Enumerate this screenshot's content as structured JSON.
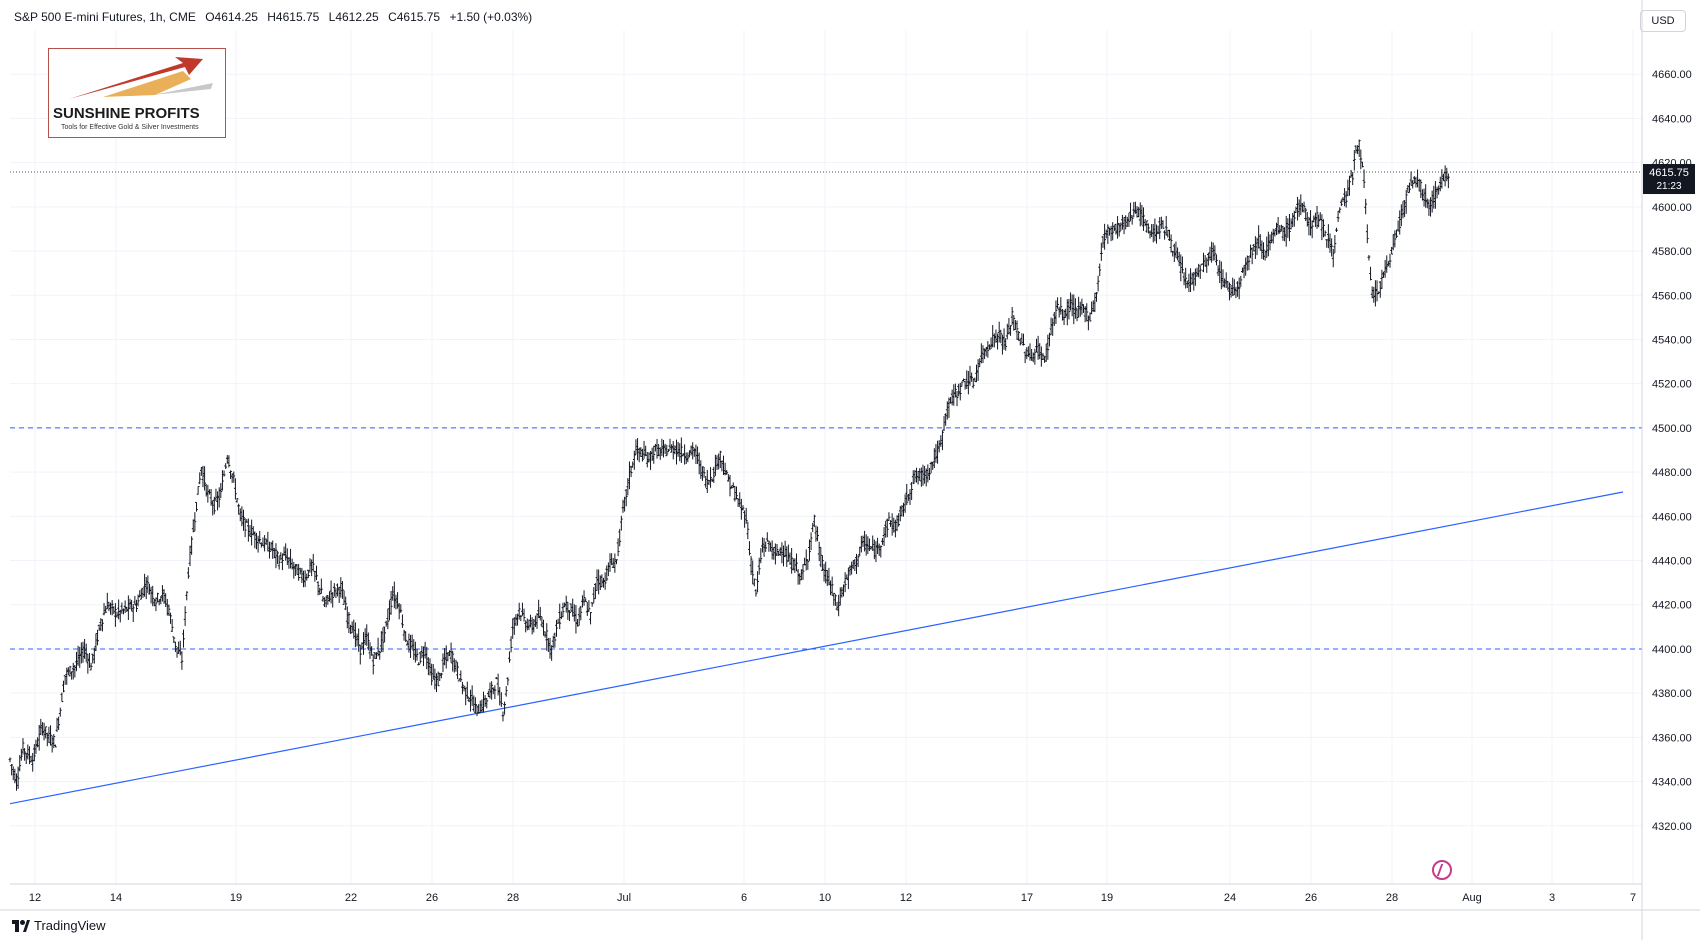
{
  "header": {
    "symbol": "S&P 500 E-mini Futures, 1h, CME",
    "open": "O4614.25",
    "high": "H4615.75",
    "low": "L4612.25",
    "close": "C4615.75",
    "change": "+1.50 (+0.03%)"
  },
  "currency": "USD",
  "branding": "TradingView",
  "logo": {
    "title": "SUNSHINE PROFITS",
    "subtitle": "Tools for Effective Gold & Silver Investments"
  },
  "colors": {
    "candle": "#131722",
    "trendline": "#2962ff",
    "level": "#2962ff",
    "current_tag": "#131722",
    "grid": "#f0f3fa"
  },
  "chart_data": {
    "type": "line",
    "style": "hourly OHLC bars",
    "symbol": "S&P 500 E-mini Futures",
    "interval": "1h",
    "ylim": [
      4300,
      4680
    ],
    "y_ticks": [
      4320,
      4340,
      4360,
      4380,
      4400,
      4420,
      4440,
      4460,
      4480,
      4500,
      4520,
      4540,
      4560,
      4580,
      4600,
      4620,
      4640,
      4660
    ],
    "x_tick_labels": [
      "12",
      "14",
      "19",
      "22",
      "26",
      "28",
      "Jul",
      "6",
      "10",
      "12",
      "17",
      "19",
      "24",
      "26",
      "28",
      "Aug",
      "3",
      "7"
    ],
    "grid": true,
    "current_price": "4615.75",
    "countdown": "21:23",
    "horizontal_levels": [
      4500,
      4400
    ],
    "trendline": {
      "start": [
        "Jun 12",
        4330
      ],
      "end": [
        "Aug 7",
        4471
      ]
    },
    "series": [
      {
        "values_by_label": [
          [
            "12",
            4355
          ],
          [
            "14",
            4420
          ],
          [
            "19",
            4460
          ],
          [
            "22",
            4405
          ],
          [
            "26",
            4385
          ],
          [
            "28",
            4415
          ],
          [
            "Jul",
            4490
          ],
          [
            "6",
            4440
          ],
          [
            "10",
            4420
          ],
          [
            "12",
            4475
          ],
          [
            "17",
            4535
          ],
          [
            "19",
            4595
          ],
          [
            "24",
            4565
          ],
          [
            "26",
            4600
          ],
          [
            "28",
            4575
          ]
        ],
        "path": [
          [
            0,
            4350
          ],
          [
            4,
            4340
          ],
          [
            8,
            4355
          ],
          [
            14,
            4350
          ],
          [
            20,
            4365
          ],
          [
            24,
            4360
          ],
          [
            28,
            4358
          ],
          [
            34,
            4388
          ],
          [
            40,
            4392
          ],
          [
            46,
            4400
          ],
          [
            50,
            4392
          ],
          [
            56,
            4412
          ],
          [
            60,
            4420
          ],
          [
            66,
            4416
          ],
          [
            72,
            4418
          ],
          [
            78,
            4420
          ],
          [
            84,
            4430
          ],
          [
            90,
            4422
          ],
          [
            94,
            4425
          ],
          [
            98,
            4418
          ],
          [
            102,
            4402
          ],
          [
            106,
            4395
          ],
          [
            110,
            4435
          ],
          [
            114,
            4460
          ],
          [
            118,
            4482
          ],
          [
            122,
            4470
          ],
          [
            126,
            4465
          ],
          [
            130,
            4470
          ],
          [
            134,
            4488
          ],
          [
            138,
            4476
          ],
          [
            142,
            4460
          ],
          [
            146,
            4455
          ],
          [
            150,
            4452
          ],
          [
            156,
            4448
          ],
          [
            162,
            4445
          ],
          [
            166,
            4440
          ],
          [
            170,
            4442
          ],
          [
            176,
            4436
          ],
          [
            182,
            4432
          ],
          [
            186,
            4438
          ],
          [
            190,
            4430
          ],
          [
            194,
            4420
          ],
          [
            198,
            4425
          ],
          [
            204,
            4428
          ],
          [
            208,
            4415
          ],
          [
            212,
            4408
          ],
          [
            216,
            4400
          ],
          [
            220,
            4405
          ],
          [
            224,
            4395
          ],
          [
            228,
            4400
          ],
          [
            232,
            4410
          ],
          [
            236,
            4425
          ],
          [
            240,
            4420
          ],
          [
            244,
            4405
          ],
          [
            248,
            4400
          ],
          [
            252,
            4395
          ],
          [
            256,
            4400
          ],
          [
            260,
            4388
          ],
          [
            264,
            4385
          ],
          [
            268,
            4395
          ],
          [
            272,
            4398
          ],
          [
            276,
            4390
          ],
          [
            280,
            4382
          ],
          [
            284,
            4378
          ],
          [
            288,
            4372
          ],
          [
            292,
            4375
          ],
          [
            296,
            4380
          ],
          [
            300,
            4385
          ],
          [
            304,
            4372
          ],
          [
            306,
            4380
          ],
          [
            310,
            4410
          ],
          [
            314,
            4418
          ],
          [
            318,
            4412
          ],
          [
            322,
            4410
          ],
          [
            326,
            4415
          ],
          [
            330,
            4408
          ],
          [
            334,
            4400
          ],
          [
            338,
            4412
          ],
          [
            342,
            4420
          ],
          [
            346,
            4418
          ],
          [
            350,
            4412
          ],
          [
            354,
            4422
          ],
          [
            358,
            4415
          ],
          [
            362,
            4432
          ],
          [
            366,
            4430
          ],
          [
            370,
            4438
          ],
          [
            374,
            4440
          ],
          [
            378,
            4462
          ],
          [
            382,
            4478
          ],
          [
            386,
            4490
          ],
          [
            390,
            4488
          ],
          [
            394,
            4486
          ],
          [
            398,
            4490
          ],
          [
            402,
            4489
          ],
          [
            406,
            4490
          ],
          [
            410,
            4491
          ],
          [
            414,
            4489
          ],
          [
            418,
            4488
          ],
          [
            422,
            4490
          ],
          [
            426,
            4482
          ],
          [
            430,
            4475
          ],
          [
            434,
            4480
          ],
          [
            438,
            4488
          ],
          [
            442,
            4478
          ],
          [
            446,
            4472
          ],
          [
            450,
            4465
          ],
          [
            454,
            4460
          ],
          [
            456,
            4445
          ],
          [
            460,
            4425
          ],
          [
            464,
            4446
          ],
          [
            468,
            4448
          ],
          [
            472,
            4442
          ],
          [
            476,
            4446
          ],
          [
            480,
            4440
          ],
          [
            484,
            4438
          ],
          [
            488,
            4432
          ],
          [
            492,
            4442
          ],
          [
            496,
            4458
          ],
          [
            500,
            4440
          ],
          [
            504,
            4432
          ],
          [
            508,
            4425
          ],
          [
            510,
            4418
          ],
          [
            514,
            4428
          ],
          [
            518,
            4435
          ],
          [
            522,
            4440
          ],
          [
            526,
            4448
          ],
          [
            530,
            4446
          ],
          [
            534,
            4444
          ],
          [
            538,
            4450
          ],
          [
            542,
            4458
          ],
          [
            546,
            4455
          ],
          [
            550,
            4462
          ],
          [
            554,
            4470
          ],
          [
            558,
            4478
          ],
          [
            562,
            4478
          ],
          [
            566,
            4480
          ],
          [
            570,
            4486
          ],
          [
            574,
            4492
          ],
          [
            578,
            4510
          ],
          [
            582,
            4514
          ],
          [
            586,
            4518
          ],
          [
            590,
            4522
          ],
          [
            594,
            4520
          ],
          [
            598,
            4530
          ],
          [
            602,
            4536
          ],
          [
            606,
            4540
          ],
          [
            610,
            4542
          ],
          [
            614,
            4538
          ],
          [
            618,
            4550
          ],
          [
            622,
            4542
          ],
          [
            626,
            4535
          ],
          [
            630,
            4532
          ],
          [
            634,
            4536
          ],
          [
            638,
            4530
          ],
          [
            642,
            4545
          ],
          [
            646,
            4555
          ],
          [
            650,
            4550
          ],
          [
            654,
            4556
          ],
          [
            658,
            4552
          ],
          [
            662,
            4554
          ],
          [
            666,
            4550
          ],
          [
            670,
            4560
          ],
          [
            674,
            4585
          ],
          [
            678,
            4590
          ],
          [
            682,
            4590
          ],
          [
            686,
            4592
          ],
          [
            690,
            4594
          ],
          [
            694,
            4600
          ],
          [
            698,
            4595
          ],
          [
            702,
            4590
          ],
          [
            706,
            4588
          ],
          [
            710,
            4592
          ],
          [
            714,
            4588
          ],
          [
            718,
            4580
          ],
          [
            722,
            4572
          ],
          [
            726,
            4565
          ],
          [
            730,
            4568
          ],
          [
            734,
            4572
          ],
          [
            738,
            4575
          ],
          [
            742,
            4580
          ],
          [
            746,
            4570
          ],
          [
            750,
            4565
          ],
          [
            754,
            4562
          ],
          [
            758,
            4565
          ],
          [
            762,
            4575
          ],
          [
            766,
            4580
          ],
          [
            770,
            4585
          ],
          [
            774,
            4580
          ],
          [
            778,
            4585
          ],
          [
            782,
            4590
          ],
          [
            786,
            4588
          ],
          [
            790,
            4592
          ],
          [
            794,
            4600
          ],
          [
            798,
            4598
          ],
          [
            802,
            4592
          ],
          [
            806,
            4595
          ],
          [
            810,
            4590
          ],
          [
            814,
            4585
          ],
          [
            816,
            4578
          ],
          [
            820,
            4600
          ],
          [
            824,
            4605
          ],
          [
            828,
            4615
          ],
          [
            830,
            4625
          ],
          [
            832,
            4628
          ],
          [
            834,
            4620
          ],
          [
            836,
            4600
          ],
          [
            838,
            4575
          ],
          [
            840,
            4560
          ],
          [
            844,
            4562
          ],
          [
            848,
            4570
          ],
          [
            852,
            4580
          ],
          [
            856,
            4590
          ],
          [
            860,
            4602
          ],
          [
            864,
            4610
          ],
          [
            868,
            4612
          ],
          [
            872,
            4605
          ],
          [
            876,
            4600
          ],
          [
            880,
            4608
          ],
          [
            884,
            4612
          ],
          [
            888,
            4615.75
          ]
        ]
      }
    ]
  }
}
